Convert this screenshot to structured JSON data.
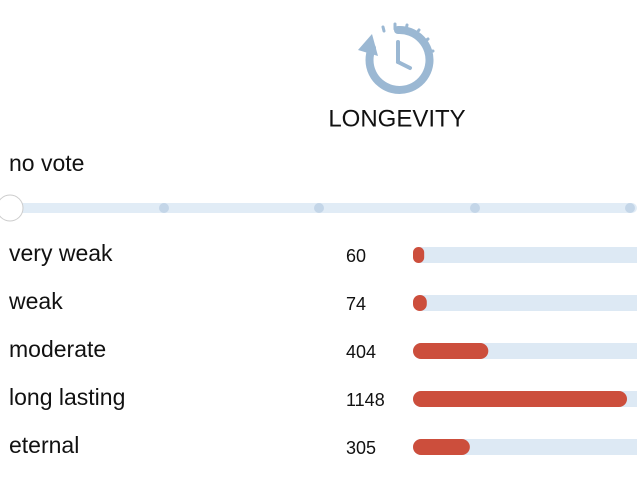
{
  "header": {
    "title": "LONGEVITY"
  },
  "vote": {
    "label": "no vote"
  },
  "rows": [
    {
      "label": "very weak",
      "count": 60
    },
    {
      "label": "weak",
      "count": 74
    },
    {
      "label": "moderate",
      "count": 404
    },
    {
      "label": "long lasting",
      "count": 1148
    },
    {
      "label": "eternal",
      "count": 305
    }
  ]
}
